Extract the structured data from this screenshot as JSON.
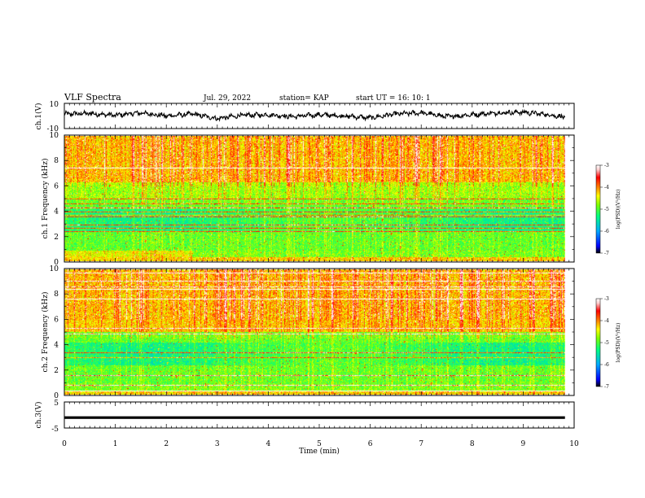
{
  "header": {
    "title": "VLF Spectra",
    "date": "Jul. 29, 2022",
    "station": "station= KAP",
    "start_ut": "start UT =  16: 10: 1"
  },
  "chart_data": [
    {
      "type": "line",
      "panel": "ch1-waveform",
      "ylabel": "ch.1(V)",
      "ylim": [
        -10,
        10
      ],
      "yticks": [
        "10",
        "-10"
      ],
      "xlim": [
        0,
        10
      ],
      "data_end_min": 9.82,
      "description_series": "noisy waveform oscillating roughly between -5 and 5 V",
      "approx_envelope": [
        [
          0,
          1.5
        ],
        [
          0.5,
          2
        ],
        [
          1,
          0.5
        ],
        [
          1.5,
          2.5
        ],
        [
          2,
          0
        ],
        [
          2.5,
          1.5
        ],
        [
          3,
          -2
        ],
        [
          3.5,
          0.5
        ],
        [
          4,
          1
        ],
        [
          4.5,
          -0.5
        ],
        [
          5,
          1
        ],
        [
          5.5,
          0
        ],
        [
          6,
          -1.5
        ],
        [
          6.5,
          1.5
        ],
        [
          7,
          2.5
        ],
        [
          7.5,
          -0.5
        ],
        [
          8,
          1
        ],
        [
          8.5,
          2.5
        ],
        [
          9,
          3
        ],
        [
          9.5,
          1
        ],
        [
          9.82,
          -1
        ]
      ]
    },
    {
      "type": "heatmap",
      "panel": "ch1-spectrogram",
      "ylabel": "ch.1 Frequency (kHz)",
      "ylim": [
        0,
        10
      ],
      "yticks": [
        "0",
        "2",
        "4",
        "6",
        "8",
        "10"
      ],
      "xlim": [
        0,
        10
      ],
      "data_end_min": 9.82,
      "colorbar": {
        "label": "log(PSD)(V²/Hz)",
        "range": [
          -7,
          -3
        ],
        "ticks": [
          "-3",
          "-4",
          "-5",
          "-6",
          "-7"
        ],
        "colors": [
          "#000000",
          "#0000ff",
          "#00aaff",
          "#00ff80",
          "#80ff00",
          "#ffff00",
          "#ff8000",
          "#ff0000",
          "#ffd0d0",
          "#ffffff"
        ]
      }
    },
    {
      "type": "heatmap",
      "panel": "ch2-spectrogram",
      "ylabel": "ch.2 Frequency (kHz)",
      "ylim": [
        0,
        10
      ],
      "yticks": [
        "0",
        "2",
        "4",
        "6",
        "8",
        "10"
      ],
      "xlim": [
        0,
        10
      ],
      "data_end_min": 9.82,
      "colorbar": {
        "label": "log(PSD)(V²/Hz)",
        "range": [
          -7,
          -3
        ],
        "ticks": [
          "-3",
          "-4",
          "-5",
          "-6",
          "-7"
        ]
      }
    },
    {
      "type": "line",
      "panel": "ch3-waveform",
      "ylabel": "ch.3(V)",
      "ylim": [
        -5,
        5
      ],
      "yticks": [
        "5",
        "0",
        "-5"
      ],
      "xlim": [
        0,
        10
      ],
      "xticks": [
        "0",
        "1",
        "2",
        "3",
        "4",
        "5",
        "6",
        "7",
        "8",
        "9",
        "10"
      ],
      "xlabel": "Time (min)",
      "data_end_min": 9.82,
      "constant_value": -1,
      "band_half_width": 0.5
    }
  ]
}
